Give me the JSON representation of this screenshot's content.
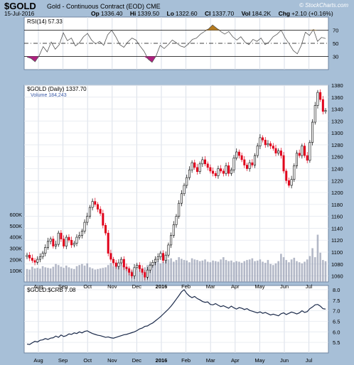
{
  "header": {
    "symbol": "$GOLD",
    "name": "Gold - Continuous Contract (EOD)",
    "exchange": "CME",
    "date": "15-Jul-2016",
    "brand": "© StockCharts.com",
    "quotes": [
      {
        "label": "Op",
        "value": "1336.40"
      },
      {
        "label": "Hi",
        "value": "1339.50"
      },
      {
        "label": "Lo",
        "value": "1322.60"
      },
      {
        "label": "Cl",
        "value": "1337.70"
      },
      {
        "label": "Vol",
        "value": "184.2K"
      },
      {
        "label": "Chg",
        "value": "+2.10 (+0.16%)"
      }
    ]
  },
  "colors": {
    "up": "#000000",
    "down": "#e0001a",
    "rsi_fill": "#b57a1e",
    "low_fill": "#b02080",
    "volume": "#9aa0b4"
  },
  "chart_data": [
    {
      "type": "line",
      "panel": "rsi",
      "legend": "RSI(14) 57.33",
      "ylim": [
        10,
        90
      ],
      "yticks": [
        30,
        50,
        70
      ],
      "reference_lines": [
        30,
        50,
        70
      ],
      "series": [
        {
          "name": "RSI(14)",
          "values": [
            29,
            27,
            22,
            31,
            45,
            37,
            52,
            41,
            48,
            66,
            54,
            58,
            46,
            51,
            60,
            65,
            55,
            49,
            53,
            47,
            63,
            70,
            60,
            48,
            44,
            52,
            58,
            55,
            46,
            38,
            26,
            21,
            31,
            47,
            42,
            48,
            55,
            51,
            46,
            44,
            49,
            56,
            58,
            64,
            68,
            72,
            78,
            73,
            68,
            64,
            68,
            60,
            55,
            60,
            52,
            48,
            56,
            53,
            58,
            48,
            52,
            60,
            64,
            70,
            58,
            49,
            39,
            34,
            47,
            67,
            62,
            71,
            53,
            59,
            57.33
          ]
        }
      ]
    },
    {
      "type": "candlestick",
      "panel": "price",
      "legend": [
        "$GOLD (Daily) 1337.70",
        "Volume 184,243"
      ],
      "x_labels": [
        "Aug",
        "Sep",
        "Oct",
        "Nov",
        "Dec",
        "2016",
        "Feb",
        "Mar",
        "Apr",
        "May",
        "Jun",
        "Jul"
      ],
      "ylim": [
        1050,
        1380
      ],
      "yticks": [
        1060,
        1080,
        1100,
        1120,
        1140,
        1160,
        1180,
        1200,
        1220,
        1240,
        1260,
        1280,
        1300,
        1320,
        1340,
        1360,
        1380
      ],
      "close": [
        1095,
        1090,
        1086,
        1083,
        1088,
        1092,
        1098,
        1108,
        1118,
        1122,
        1110,
        1113,
        1132,
        1122,
        1110,
        1125,
        1120,
        1112,
        1115,
        1125,
        1128,
        1135,
        1150,
        1160,
        1175,
        1185,
        1180,
        1172,
        1165,
        1145,
        1132,
        1098,
        1088,
        1082,
        1076,
        1082,
        1088,
        1075,
        1072,
        1066,
        1060,
        1074,
        1078,
        1072,
        1066,
        1058,
        1070,
        1078,
        1083,
        1088,
        1092,
        1098,
        1086,
        1095,
        1112,
        1128,
        1146,
        1160,
        1182,
        1198,
        1212,
        1225,
        1238,
        1250,
        1242,
        1235,
        1248,
        1255,
        1248,
        1242,
        1236,
        1232,
        1228,
        1240,
        1236,
        1232,
        1245,
        1232,
        1238,
        1258,
        1268,
        1262,
        1255,
        1246,
        1240,
        1250,
        1246,
        1262,
        1278,
        1292,
        1288,
        1280,
        1282,
        1278,
        1274,
        1266,
        1270,
        1262,
        1236,
        1220,
        1212,
        1222,
        1245,
        1266,
        1262,
        1278,
        1262,
        1254,
        1284,
        1318,
        1346,
        1368,
        1356,
        1336,
        1337.7
      ],
      "volume_ticks": [
        "100K",
        "200K",
        "300K",
        "400K",
        "500K",
        "600K"
      ],
      "volume": [
        115,
        110,
        135,
        120,
        125,
        118,
        140,
        130,
        125,
        120,
        135,
        160,
        150,
        135,
        125,
        145,
        130,
        120,
        115,
        140,
        150,
        160,
        145,
        165,
        130,
        120,
        110,
        115,
        120,
        125,
        130,
        150,
        170,
        140,
        155,
        165,
        150,
        140,
        135,
        125,
        100,
        110,
        105,
        115,
        120,
        130,
        150,
        160,
        170,
        175,
        190,
        165,
        180,
        195,
        200,
        210,
        180,
        195,
        220,
        205,
        195,
        190,
        175,
        210,
        200,
        195,
        185,
        190,
        200,
        180,
        175,
        190,
        185,
        180,
        200,
        220,
        195,
        185,
        190,
        175,
        185,
        180,
        170,
        185,
        195,
        200,
        210,
        185,
        190,
        200,
        180,
        170,
        195,
        160,
        150,
        165,
        185,
        250,
        220,
        195,
        175,
        200,
        215,
        185,
        175,
        165,
        180,
        200,
        230,
        300,
        220,
        420,
        260,
        195,
        184.2
      ]
    },
    {
      "type": "line",
      "panel": "ratio",
      "legend": "$GOLD:$CRB 7.08",
      "ylim": [
        5.0,
        8.2
      ],
      "yticks": [
        5.5,
        6.0,
        6.5,
        7.0,
        7.5,
        8.0
      ],
      "series": [
        {
          "name": "$GOLD:$CRB",
          "values": [
            5.42,
            5.4,
            5.48,
            5.55,
            5.52,
            5.6,
            5.62,
            5.68,
            5.64,
            5.7,
            5.72,
            5.8,
            5.74,
            5.85,
            5.78,
            5.82,
            5.9,
            5.88,
            5.95,
            5.92,
            6.0,
            5.95,
            6.02,
            6.05,
            5.98,
            5.92,
            5.88,
            5.84,
            5.82,
            5.78,
            5.74,
            5.76,
            5.72,
            5.7,
            5.74,
            5.78,
            5.82,
            5.86,
            5.88,
            5.92,
            5.96,
            6.0,
            6.06,
            6.14,
            6.18,
            6.26,
            6.28,
            6.36,
            6.42,
            6.52,
            6.62,
            6.72,
            6.84,
            6.96,
            7.08,
            7.22,
            7.38,
            7.55,
            7.72,
            7.9,
            8.0,
            7.82,
            7.7,
            7.62,
            7.68,
            7.58,
            7.52,
            7.44,
            7.4,
            7.42,
            7.3,
            7.28,
            7.34,
            7.26,
            7.2,
            7.24,
            7.18,
            7.12,
            7.22,
            7.14,
            7.08,
            7.15,
            7.12,
            7.06,
            7.1,
            7.02,
            6.98,
            6.94,
            6.9,
            6.95,
            6.88,
            6.92,
            6.86,
            6.8,
            6.84,
            6.8,
            6.76,
            6.86,
            6.9,
            6.82,
            6.88,
            6.94,
            6.9,
            6.85,
            6.9,
            7.0,
            6.92,
            6.96,
            7.1,
            7.18,
            7.28,
            7.3,
            7.22,
            7.1,
            7.08
          ]
        }
      ]
    }
  ]
}
